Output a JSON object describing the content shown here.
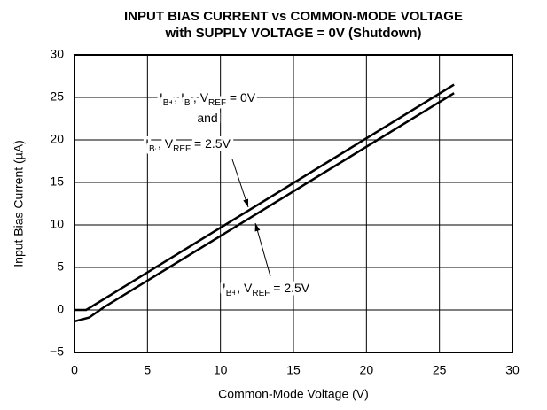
{
  "chart_data": {
    "type": "line",
    "title": [
      "INPUT BIAS CURRENT vs COMMON-MODE VOLTAGE",
      "with SUPPLY VOLTAGE = 0V (Shutdown)"
    ],
    "x_label": "Common-Mode Voltage (V)",
    "y_label": "Input Bias Current (µA)",
    "xlim": [
      0,
      30
    ],
    "xticks": [
      0,
      5,
      10,
      15,
      20,
      25,
      30
    ],
    "ylim": [
      -5,
      30
    ],
    "yticks": [
      {
        "value": -5,
        "label": "−5"
      },
      0,
      5,
      10,
      15,
      20,
      25,
      30
    ],
    "grid": true,
    "series": [
      {
        "color": "#000000",
        "x": [
          0,
          0.8,
          26
        ],
        "values": [
          0,
          0,
          26.5
        ]
      },
      {
        "color": "#000000",
        "x": [
          0,
          1,
          2,
          26
        ],
        "values": [
          -1.35,
          -0.9,
          0.3,
          25.5
        ]
      }
    ],
    "annotations": [
      {
        "lines": [
          [
            {
              "text": "I"
            },
            {
              "text": "B+",
              "sub": true
            },
            {
              "text": ", I"
            },
            {
              "text": "B-",
              "sub": true
            },
            {
              "text": ", V"
            },
            {
              "text": "REF",
              "sub": true
            },
            {
              "text": " = 0V"
            }
          ],
          [
            {
              "text": "and"
            }
          ],
          [
            {
              "text": "I"
            },
            {
              "text": "B-",
              "sub": true
            },
            {
              "text": ", V"
            },
            {
              "text": "REF",
              "sub": true
            },
            {
              "text": " = 2.5V"
            }
          ]
        ]
      },
      {
        "lines": [
          [
            {
              "text": "I"
            },
            {
              "text": "B+",
              "sub": true
            },
            {
              "text": ", V"
            },
            {
              "text": "REF",
              "sub": true
            },
            {
              "text": " = 2.5V"
            }
          ]
        ]
      }
    ]
  }
}
